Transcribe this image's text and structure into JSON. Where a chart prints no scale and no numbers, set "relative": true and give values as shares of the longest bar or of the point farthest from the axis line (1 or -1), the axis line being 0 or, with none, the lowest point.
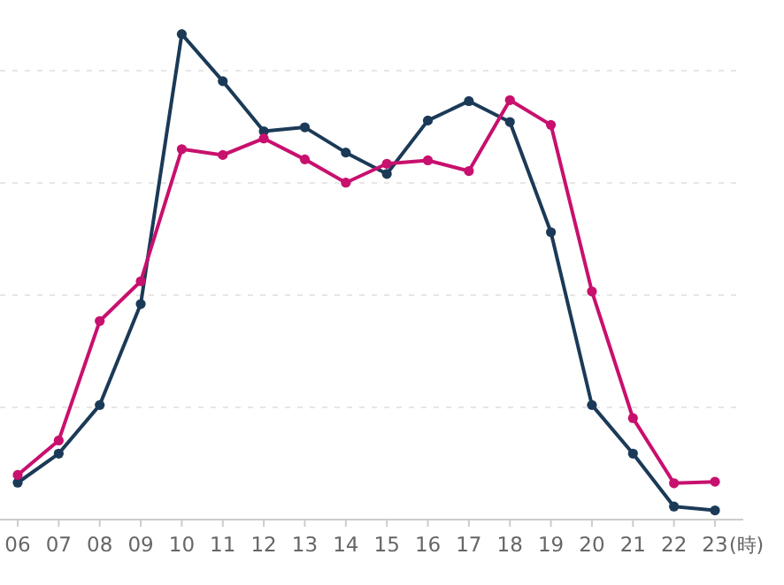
{
  "chart_data": {
    "type": "line",
    "xlabel": "(時)",
    "relative": true,
    "marker": "circle",
    "grid": "y",
    "categories": [
      "06",
      "07",
      "08",
      "09",
      "10",
      "11",
      "12",
      "13",
      "14",
      "15",
      "16",
      "17",
      "18",
      "19",
      "20",
      "21",
      "22",
      "23"
    ],
    "series": [
      {
        "color": "#1b3a57",
        "values": [
          0.076,
          0.136,
          0.236,
          0.444,
          1,
          0.903,
          0.8,
          0.808,
          0.756,
          0.712,
          0.822,
          0.862,
          0.819,
          0.592,
          0.236,
          0.136,
          0.027,
          0.019
        ]
      },
      {
        "color": "#c8106e",
        "values": [
          0.092,
          0.163,
          0.409,
          0.491,
          0.763,
          0.751,
          0.785,
          0.742,
          0.694,
          0.733,
          0.74,
          0.718,
          0.864,
          0.813,
          0.47,
          0.209,
          0.075,
          0.078
        ]
      }
    ]
  }
}
